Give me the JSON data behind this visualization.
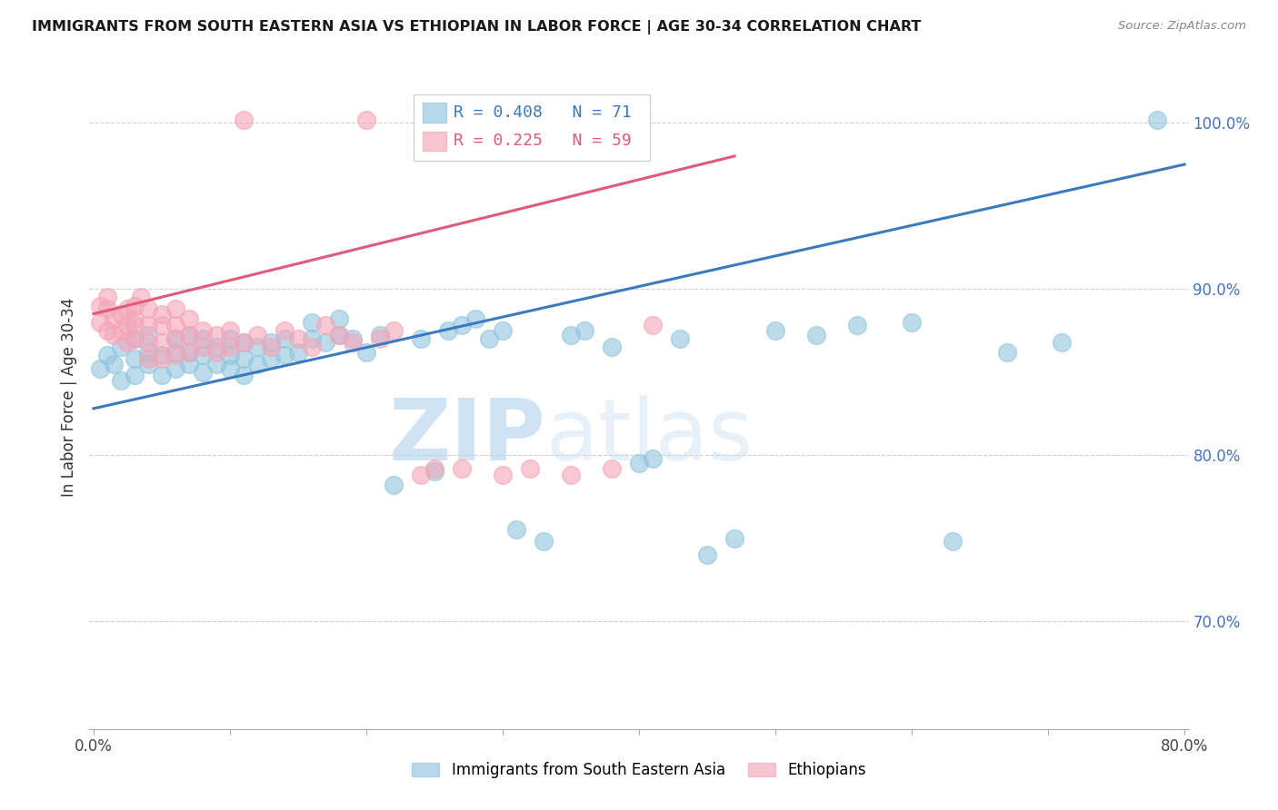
{
  "title": "IMMIGRANTS FROM SOUTH EASTERN ASIA VS ETHIOPIAN IN LABOR FORCE | AGE 30-34 CORRELATION CHART",
  "source": "Source: ZipAtlas.com",
  "ylabel": "In Labor Force | Age 30-34",
  "x_min": 0.0,
  "x_max": 0.8,
  "y_min": 0.635,
  "y_max": 1.035,
  "y_ticks": [
    0.7,
    0.8,
    0.9,
    1.0
  ],
  "y_tick_labels": [
    "70.0%",
    "80.0%",
    "90.0%",
    "100.0%"
  ],
  "x_ticks": [
    0.0,
    0.1,
    0.2,
    0.3,
    0.4,
    0.5,
    0.6,
    0.7,
    0.8
  ],
  "x_tick_labels": [
    "0.0%",
    "",
    "",
    "",
    "",
    "",
    "",
    "",
    "80.0%"
  ],
  "blue_color": "#92c5de",
  "pink_color": "#f4a6b8",
  "blue_line_color": "#3a7abf",
  "pink_line_color": "#e05a7a",
  "legend_blue_R": "R = 0.408",
  "legend_blue_N": "N = 71",
  "legend_pink_R": "R = 0.225",
  "legend_pink_N": "N = 59",
  "watermark_zip": "ZIP",
  "watermark_atlas": "atlas",
  "blue_line_x0": 0.0,
  "blue_line_y0": 0.828,
  "blue_line_x1": 0.8,
  "blue_line_y1": 0.975,
  "pink_line_x0": 0.0,
  "pink_line_y0": 0.885,
  "pink_line_x1": 0.47,
  "pink_line_y1": 0.98,
  "blue_scatter_x": [
    0.005,
    0.01,
    0.015,
    0.02,
    0.02,
    0.03,
    0.03,
    0.03,
    0.04,
    0.04,
    0.04,
    0.05,
    0.05,
    0.06,
    0.06,
    0.06,
    0.07,
    0.07,
    0.07,
    0.08,
    0.08,
    0.08,
    0.09,
    0.09,
    0.1,
    0.1,
    0.1,
    0.11,
    0.11,
    0.11,
    0.12,
    0.12,
    0.13,
    0.13,
    0.14,
    0.14,
    0.15,
    0.16,
    0.16,
    0.17,
    0.18,
    0.18,
    0.19,
    0.2,
    0.21,
    0.22,
    0.24,
    0.25,
    0.26,
    0.27,
    0.28,
    0.29,
    0.3,
    0.31,
    0.33,
    0.35,
    0.36,
    0.38,
    0.4,
    0.41,
    0.43,
    0.45,
    0.47,
    0.5,
    0.53,
    0.56,
    0.6,
    0.63,
    0.67,
    0.71,
    0.78
  ],
  "blue_scatter_y": [
    0.852,
    0.86,
    0.855,
    0.865,
    0.845,
    0.87,
    0.858,
    0.848,
    0.855,
    0.862,
    0.872,
    0.848,
    0.86,
    0.852,
    0.862,
    0.87,
    0.855,
    0.862,
    0.872,
    0.85,
    0.86,
    0.87,
    0.855,
    0.865,
    0.852,
    0.86,
    0.87,
    0.848,
    0.858,
    0.868,
    0.855,
    0.865,
    0.858,
    0.868,
    0.86,
    0.87,
    0.862,
    0.87,
    0.88,
    0.868,
    0.872,
    0.882,
    0.87,
    0.862,
    0.872,
    0.782,
    0.87,
    0.79,
    0.875,
    0.878,
    0.882,
    0.87,
    0.875,
    0.755,
    0.748,
    0.872,
    0.875,
    0.865,
    0.795,
    0.798,
    0.87,
    0.74,
    0.75,
    0.875,
    0.872,
    0.878,
    0.88,
    0.748,
    0.862,
    0.868,
    1.002
  ],
  "pink_scatter_x": [
    0.005,
    0.005,
    0.01,
    0.01,
    0.01,
    0.015,
    0.015,
    0.02,
    0.02,
    0.025,
    0.025,
    0.025,
    0.03,
    0.03,
    0.03,
    0.03,
    0.035,
    0.04,
    0.04,
    0.04,
    0.04,
    0.05,
    0.05,
    0.05,
    0.05,
    0.06,
    0.06,
    0.06,
    0.06,
    0.07,
    0.07,
    0.07,
    0.08,
    0.08,
    0.09,
    0.09,
    0.1,
    0.1,
    0.11,
    0.12,
    0.13,
    0.14,
    0.15,
    0.16,
    0.17,
    0.18,
    0.19,
    0.21,
    0.22,
    0.24,
    0.25,
    0.27,
    0.3,
    0.32,
    0.35,
    0.38,
    0.41,
    0.2,
    0.11
  ],
  "pink_scatter_y": [
    0.88,
    0.89,
    0.875,
    0.888,
    0.895,
    0.872,
    0.882,
    0.875,
    0.885,
    0.868,
    0.878,
    0.888,
    0.87,
    0.878,
    0.882,
    0.89,
    0.895,
    0.858,
    0.868,
    0.878,
    0.888,
    0.858,
    0.868,
    0.878,
    0.885,
    0.86,
    0.87,
    0.878,
    0.888,
    0.862,
    0.872,
    0.882,
    0.865,
    0.875,
    0.862,
    0.872,
    0.865,
    0.875,
    0.868,
    0.872,
    0.865,
    0.875,
    0.87,
    0.865,
    0.878,
    0.872,
    0.868,
    0.87,
    0.875,
    0.788,
    0.792,
    0.792,
    0.788,
    0.792,
    0.788,
    0.792,
    0.878,
    1.002,
    1.002
  ]
}
